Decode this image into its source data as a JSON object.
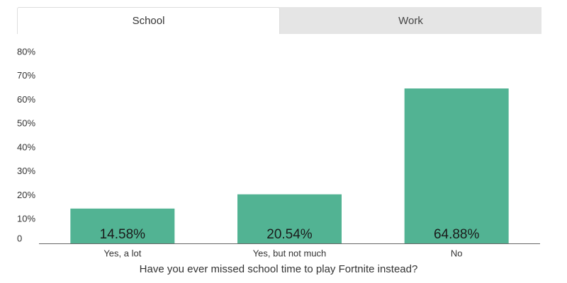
{
  "tabs": [
    {
      "label": "School",
      "active": true
    },
    {
      "label": "Work",
      "active": false
    }
  ],
  "chart_data": {
    "type": "bar",
    "categories": [
      "Yes, a lot",
      "Yes, but not much",
      "No"
    ],
    "values": [
      14.58,
      20.54,
      64.88
    ],
    "value_labels": [
      "14.58%",
      "20.54%",
      "64.88%"
    ],
    "xlabel": "Have you ever missed school time to play Fortnite instead?",
    "ylabel": "",
    "ylim": [
      0,
      80
    ],
    "yticks": [
      0,
      10,
      20,
      30,
      40,
      50,
      60,
      70,
      80
    ],
    "ytick_labels": [
      "0",
      "10%",
      "20%",
      "30%",
      "40%",
      "50%",
      "60%",
      "70%",
      "80%"
    ],
    "bar_color": "#52b393",
    "grid": false,
    "legend": "none"
  }
}
